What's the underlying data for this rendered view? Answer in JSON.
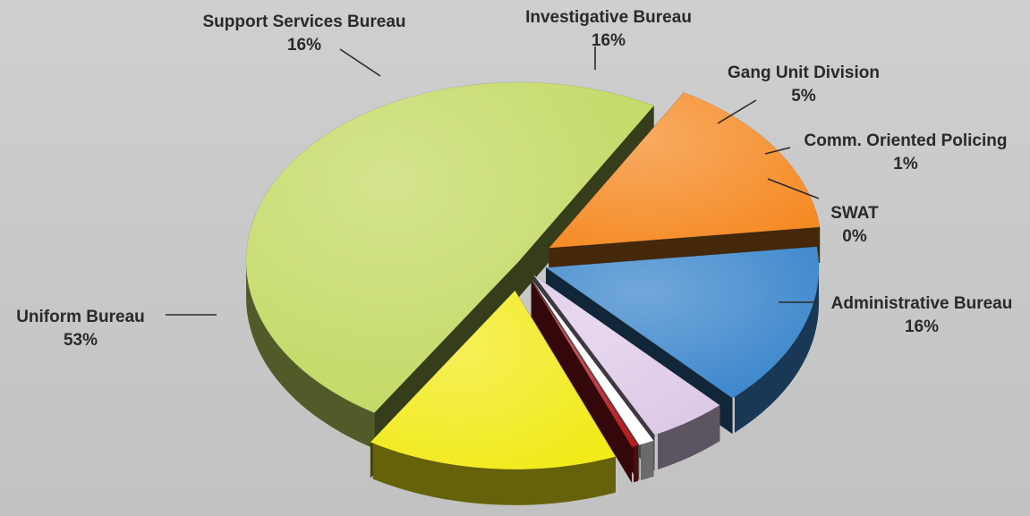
{
  "chart_data": {
    "type": "pie",
    "title": "",
    "labels": [
      "Uniform Bureau",
      "Support Services Bureau",
      "Investigative Bureau",
      "Gang Unit Division",
      "Comm. Oriented Policing",
      "SWAT",
      "Administrative Bureau"
    ],
    "values": [
      53,
      16,
      16,
      5,
      1,
      0,
      16
    ],
    "value_labels": [
      "53%",
      "16%",
      "16%",
      "5%",
      "1%",
      "0%",
      "16%"
    ],
    "colors": [
      "#c2d962",
      "#f58a24",
      "#3b86cc",
      "#ddc9e8",
      "#ffffff",
      "#b81e24",
      "#f2ea1a"
    ],
    "style": "3d-exploded",
    "legend": "none"
  }
}
